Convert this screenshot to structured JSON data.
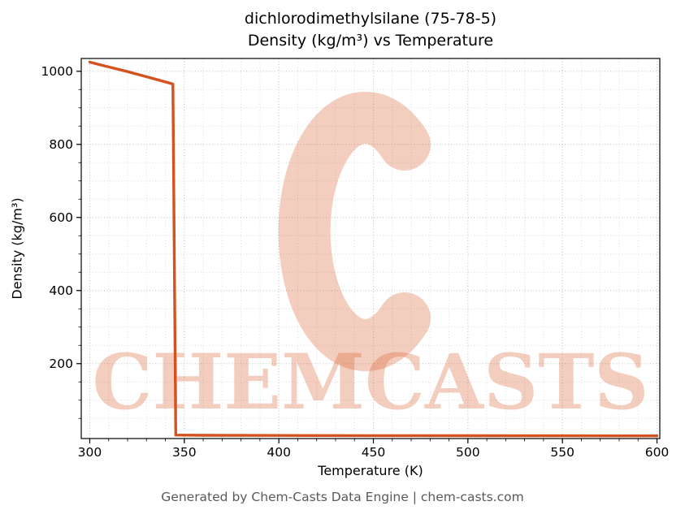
{
  "header": {
    "title_line1": "dichlorodimethylsilane (75-78-5)",
    "title_line2": "Density (kg/m³) vs Temperature"
  },
  "footer": {
    "text": "Generated by Chem-Casts Data Engine | chem-casts.com"
  },
  "watermark": {
    "text": "CHEMCASTS",
    "logo": "c-swoosh-logo",
    "color": "#d85c2a",
    "opacity": 0.3
  },
  "chart_data": {
    "type": "line",
    "title": "dichlorodimethylsilane (75-78-5)\nDensity (kg/m³) vs Temperature",
    "xlabel": "Temperature (K)",
    "ylabel": "Density (kg/m³)",
    "xlim": [
      295.5,
      601.5
    ],
    "ylim": [
      -5,
      1035
    ],
    "x_ticks": [
      300,
      350,
      400,
      450,
      500,
      550,
      600
    ],
    "y_ticks": [
      200,
      400,
      600,
      800,
      1000
    ],
    "minor_x_step": 10,
    "minor_y_step": 50,
    "grid": true,
    "legend": "none",
    "line_color": "#d4521e",
    "grid_major_color": "#c4c4c4",
    "grid_minor_color": "#dedede",
    "series": [
      {
        "name": "density",
        "points": [
          [
            300,
            1025
          ],
          [
            310,
            1012
          ],
          [
            320,
            999
          ],
          [
            330,
            985
          ],
          [
            340,
            971
          ],
          [
            344,
            965
          ],
          [
            345.5,
            4.5
          ],
          [
            360,
            4.0
          ],
          [
            400,
            3.4
          ],
          [
            450,
            3.0
          ],
          [
            500,
            2.7
          ],
          [
            550,
            2.5
          ],
          [
            600,
            2.4
          ]
        ]
      }
    ]
  }
}
